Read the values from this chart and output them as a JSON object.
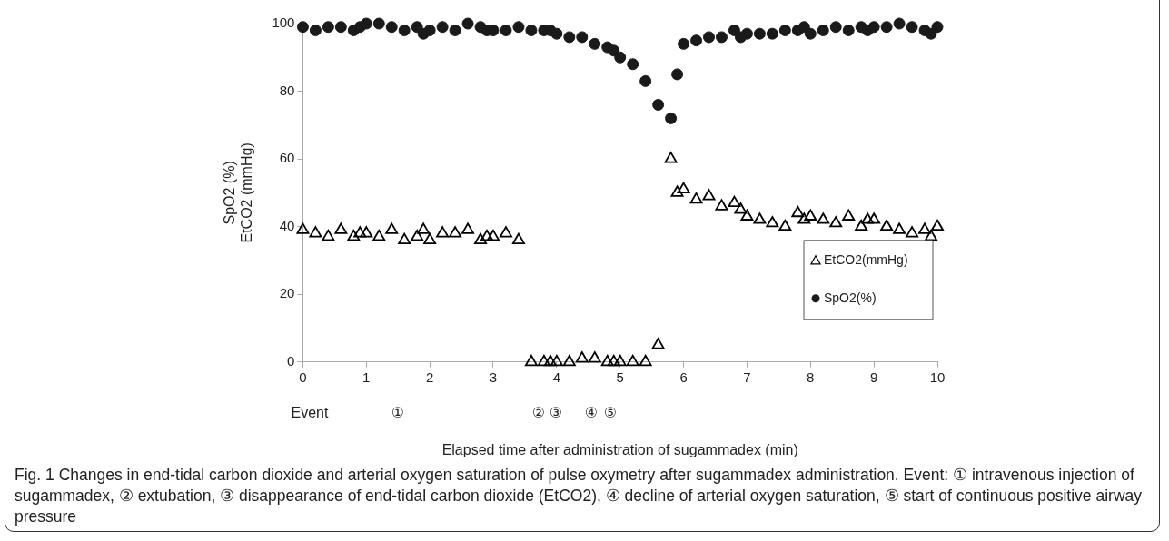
{
  "chart_data": {
    "type": "scatter",
    "xlabel": "Elapsed time after administration of sugammadex (min)",
    "ylabel": "SpO2 (%)\nEtCO2 (mmHg)",
    "xlim": [
      0,
      10
    ],
    "xticks": [
      0,
      1,
      2,
      3,
      4,
      5,
      6,
      7,
      8,
      9,
      10
    ],
    "ylim": [
      0,
      100
    ],
    "yticks": [
      0,
      20,
      40,
      60,
      80,
      100
    ],
    "grid": false,
    "legend": "bottom right",
    "x": [
      0,
      0.2,
      0.4,
      0.6,
      0.8,
      0.9,
      1.0,
      1.2,
      1.4,
      1.6,
      1.8,
      1.9,
      2.0,
      2.2,
      2.4,
      2.6,
      2.8,
      2.9,
      3.0,
      3.2,
      3.4,
      3.6,
      3.8,
      3.9,
      4.0,
      4.2,
      4.4,
      4.6,
      4.8,
      4.9,
      5.0,
      5.2,
      5.4,
      5.6,
      5.8,
      5.9,
      6.0,
      6.2,
      6.4,
      6.6,
      6.8,
      6.9,
      7.0,
      7.2,
      7.4,
      7.6,
      7.8,
      7.9,
      8.0,
      8.2,
      8.4,
      8.6,
      8.8,
      8.9,
      9.0,
      9.2,
      9.4,
      9.6,
      9.8,
      9.9,
      10
    ],
    "series": [
      {
        "name": "EtCO2(mmHg)",
        "color": "#000000",
        "marker": "triangle",
        "values": [
          39,
          38,
          37,
          39,
          37,
          38,
          38,
          37,
          39,
          36,
          37,
          39,
          36,
          38,
          38,
          39,
          36,
          37,
          37,
          38,
          36,
          0,
          0,
          0,
          0,
          0,
          1,
          1,
          0,
          0,
          0,
          0,
          0,
          5,
          60,
          50,
          51,
          48,
          49,
          46,
          47,
          45,
          43,
          42,
          41,
          40,
          44,
          42,
          43,
          42,
          41,
          43,
          40,
          42,
          42,
          40,
          39,
          38,
          39,
          37,
          40
        ]
      },
      {
        "name": "SpO2(%)",
        "color": "#1a1a1a",
        "marker": "circle",
        "values": [
          99,
          98,
          99,
          99,
          98,
          99,
          100,
          100,
          99,
          98,
          99,
          97,
          98,
          99,
          98,
          100,
          99,
          98,
          98,
          98,
          99,
          98,
          98,
          98,
          97,
          96,
          96,
          94,
          93,
          92,
          90,
          88,
          83,
          76,
          72,
          85,
          94,
          95,
          96,
          96,
          98,
          96,
          97,
          97,
          97,
          98,
          98,
          99,
          97,
          98,
          99,
          98,
          99,
          98,
          99,
          99,
          100,
          99,
          98,
          97,
          99
        ]
      }
    ],
    "annotations": [
      "Event",
      "①",
      "②",
      "③",
      "④",
      "⑤",
      "Fig. 1 Changes in end-tidal carbon dioxide and arterial oxygen saturation of pulse oxymetry after sugammadex administration. Event: ① intravenous injection of sugammadex, ② extubation, ③ disappearance of end-tidal carbon dioxide (EtCO2), ④ decline of arterial oxygen saturation, ⑤ start of continuous positive airway pressure"
    ]
  }
}
